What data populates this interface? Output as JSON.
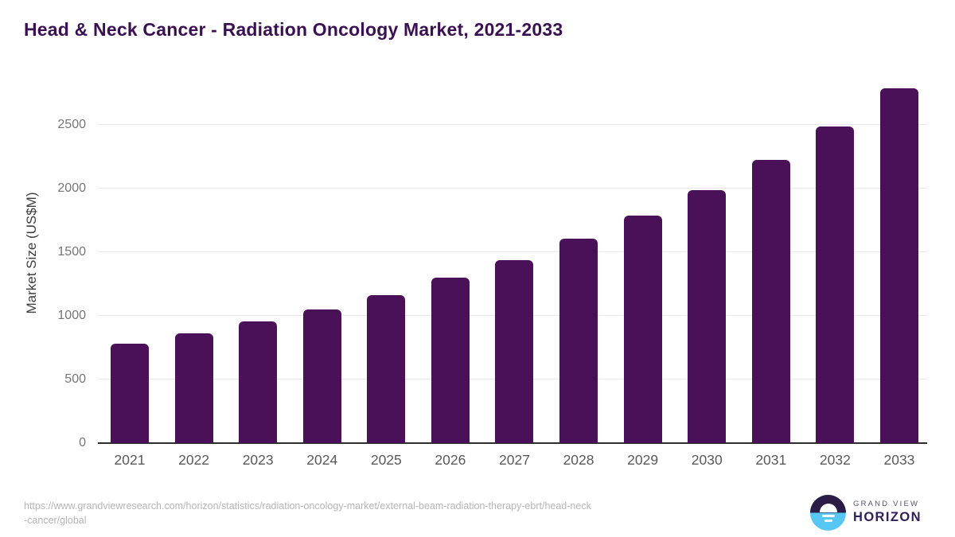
{
  "header": {
    "title": "Head & Neck Cancer - Radiation Oncology Market, 2021-2033"
  },
  "chart_data": {
    "type": "bar",
    "title": "Head & Neck Cancer - Radiation Oncology Market, 2021-2033",
    "xlabel": "",
    "ylabel": "Market Size (US$M)",
    "categories": [
      "2021",
      "2022",
      "2023",
      "2024",
      "2025",
      "2026",
      "2027",
      "2028",
      "2029",
      "2030",
      "2031",
      "2032",
      "2033"
    ],
    "values": [
      780,
      865,
      955,
      1050,
      1165,
      1300,
      1440,
      1605,
      1785,
      1990,
      2225,
      2485,
      2790
    ],
    "yticks": [
      0,
      500,
      1000,
      1500,
      2000,
      2500
    ],
    "ylim": [
      0,
      2875
    ],
    "grid": true,
    "legend_position": "none",
    "bar_color": "#4A1158"
  },
  "footer": {
    "source_line1": "https://www.grandviewresearch.com/horizon/statistics/radiation-oncology-market/external-beam-radiation-therapy-ebrt/head-neck",
    "source_line2": "-cancer/global",
    "logo": {
      "top": "GRAND VIEW",
      "bottom": "HORIZON"
    }
  },
  "colors": {
    "bar": "#4A1158",
    "title": "#3A1053",
    "axis_line": "#2E2E2E",
    "gridline": "#E8E8E8",
    "y_tick_label": "#757575",
    "x_tick_label": "#595959",
    "source_text": "#B5B5B5",
    "logo_dark_half": "#2B1B47",
    "logo_blue_half": "#57C6F3",
    "logo_text_top": "#56526D",
    "logo_text_bottom": "#33205A"
  }
}
